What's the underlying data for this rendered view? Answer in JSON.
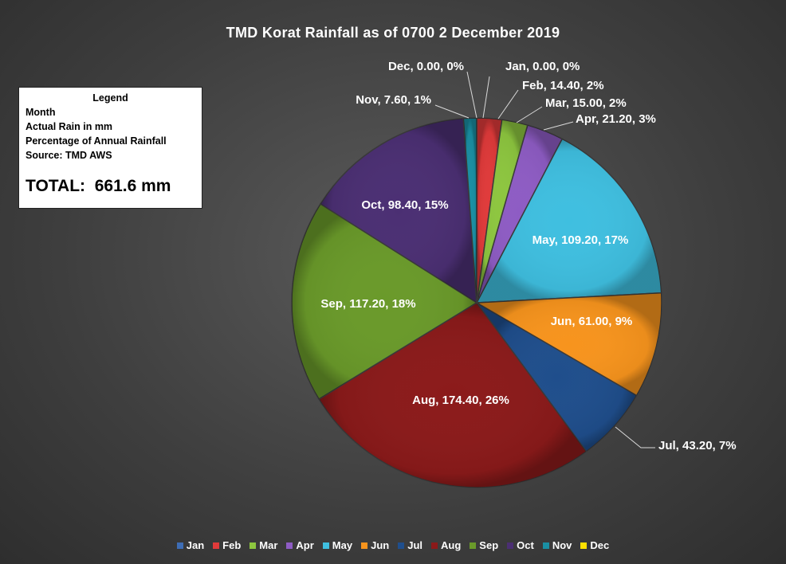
{
  "chart_data": {
    "type": "pie",
    "title": "TMD Korat Rainfall as of  0700 2 December 2019",
    "categories": [
      "Jan",
      "Feb",
      "Mar",
      "Apr",
      "May",
      "Jun",
      "Jul",
      "Aug",
      "Sep",
      "Oct",
      "Nov",
      "Dec"
    ],
    "values": [
      0.0,
      14.4,
      15.0,
      21.2,
      109.2,
      61.0,
      43.2,
      174.4,
      117.2,
      98.4,
      7.6,
      0.0
    ],
    "slice_labels": [
      "Jan, 0.00, 0%",
      "Feb, 14.40, 2%",
      "Mar, 15.00, 2%",
      "Apr, 21.20, 3%",
      "May, 109.20, 17%",
      "Jun, 61.00, 9%",
      "Jul, 43.20, 7%",
      "Aug, 174.40, 26%",
      "Sep, 117.20, 18%",
      "Oct, 98.40, 15%",
      "Nov, 7.60, 1%",
      "Dec, 0.00, 0%"
    ],
    "colors": [
      "#3e6db5",
      "#e03a3a",
      "#8dc63f",
      "#8e5cc4",
      "#3fbfe0",
      "#f7941d",
      "#1f4e8c",
      "#8b1a1a",
      "#6a9a2a",
      "#4b2f73",
      "#1a8fa3",
      "#ffe000"
    ],
    "legend_position": "bottom",
    "start_angle_deg": 0,
    "direction": "clockwise"
  },
  "info_box": {
    "heading": "Legend",
    "lines": [
      "Month",
      "Actual Rain in mm",
      "Percentage of Annual Rainfall",
      "Source: TMD AWS"
    ],
    "total": "TOTAL:  661.6 mm"
  }
}
